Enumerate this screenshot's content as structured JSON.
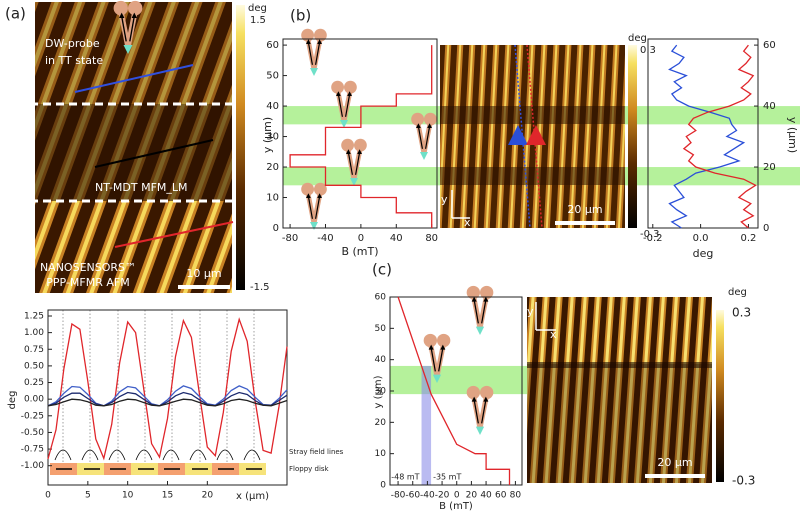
{
  "figure": {
    "panel_labels": [
      "(a)",
      "(b)",
      "(c)"
    ],
    "image_a": {
      "label_top": "DW-probe",
      "label_top2": "in TT state",
      "label_mid": "NT-MDT MFM_LM",
      "label_bottom": "NANOSENSORS™",
      "label_bottom2": "PPP-MFMR AFM",
      "scale_bar": "10 μm",
      "colorbar": {
        "label": "deg",
        "max": 1.5,
        "min": -1.5
      }
    },
    "image_b": {
      "axis_y": "y",
      "axis_x": "x",
      "scale_bar": "20 μm",
      "colorbar": {
        "label": "deg",
        "max": 0.3,
        "min": -0.3
      }
    },
    "image_c": {
      "axis_y": "y",
      "axis_x": "x",
      "scale_bar": "20 μm",
      "colorbar": {
        "label": "deg",
        "max": 0.3,
        "min": -0.3
      }
    }
  },
  "chart_data": [
    {
      "type": "line",
      "xlabel": "x (μm)",
      "ylabel": "deg",
      "x": [
        0,
        1,
        2,
        3,
        4,
        5,
        6,
        7,
        8,
        9,
        10,
        11,
        12,
        13,
        14,
        15,
        16,
        17,
        18,
        19,
        20,
        21,
        22,
        23,
        24,
        25,
        26,
        27,
        28,
        29,
        30
      ],
      "series": [
        {
          "color": "#e0262b",
          "values": [
            -0.9,
            -0.46,
            0.46,
            1.13,
            1.05,
            0.27,
            -0.6,
            -0.89,
            -0.38,
            0.55,
            1.16,
            1.0,
            0.17,
            -0.67,
            -0.87,
            -0.29,
            0.64,
            1.18,
            0.93,
            0.08,
            -0.72,
            -0.85,
            -0.2,
            0.72,
            1.2,
            0.87,
            -0.02,
            -0.77,
            -0.81,
            -0.11,
            0.79
          ]
        },
        {
          "color": "#3f5fc8",
          "values": [
            -0.1,
            -0.04,
            0.09,
            0.19,
            0.18,
            0.07,
            -0.06,
            -0.1,
            -0.03,
            0.11,
            0.19,
            0.17,
            0.05,
            -0.07,
            -0.1,
            -0.01,
            0.12,
            0.2,
            0.16,
            0.04,
            -0.07,
            -0.09,
            0.0,
            0.13,
            0.2,
            0.15,
            0.03,
            -0.08,
            -0.09,
            0.01,
            0.14
          ]
        },
        {
          "color": "#1c2a6e",
          "values": [
            -0.1,
            -0.06,
            0.03,
            0.09,
            0.09,
            0.01,
            -0.07,
            -0.1,
            -0.05,
            0.04,
            0.1,
            0.08,
            0.0,
            -0.08,
            -0.1,
            -0.04,
            0.05,
            0.1,
            0.07,
            -0.01,
            -0.08,
            -0.1,
            -0.03,
            0.05,
            0.1,
            0.07,
            -0.02,
            -0.09,
            -0.09,
            -0.02,
            0.06
          ]
        },
        {
          "color": "#222222",
          "values": [
            -0.1,
            -0.08,
            -0.04,
            0,
            -0.01,
            -0.04,
            -0.09,
            -0.1,
            -0.08,
            -0.03,
            0,
            -0.01,
            -0.05,
            -0.09,
            -0.1,
            -0.07,
            -0.03,
            0,
            -0.01,
            -0.05,
            -0.09,
            -0.1,
            -0.07,
            -0.02,
            0,
            -0.02,
            -0.06,
            -0.09,
            -0.1,
            -0.06,
            -0.02
          ]
        }
      ],
      "xlim": [
        0,
        30
      ],
      "xticks": [
        0,
        5,
        10,
        15,
        20
      ],
      "ylim": [
        -1.29,
        1.34
      ],
      "yticks": [
        1.25,
        {
          "value": 1,
          "label": "1.00"
        },
        0.75,
        {
          "value": 0.5,
          "label": "0.50"
        },
        0.25,
        {
          "value": 0,
          "label": "0.00"
        },
        -0.25,
        {
          "value": -0.5,
          "label": "-0.50"
        },
        -0.75,
        {
          "value": -1,
          "label": "-1.00"
        }
      ],
      "annotations": [
        "Stray field lines",
        "Floppy disk"
      ]
    },
    {
      "type": "line",
      "xlabel": "B (mT)",
      "ylabel": "y (μm)",
      "x": [
        80,
        80,
        40,
        40,
        0,
        0,
        -40,
        -40,
        -80,
        -80,
        -40,
        -40,
        0,
        0,
        40,
        40,
        80,
        80
      ],
      "series": [
        {
          "color": "#e0262b",
          "values": [
            60,
            44,
            44,
            40,
            40,
            33,
            33,
            24,
            24,
            20,
            20,
            14,
            14,
            10,
            10,
            5,
            5,
            0
          ]
        }
      ],
      "xlim": [
        -88,
        86
      ],
      "xticks": [
        -80,
        -40,
        0,
        40,
        80
      ],
      "ylim": [
        0,
        62
      ],
      "yticks": [
        0,
        10,
        20,
        30,
        40,
        50,
        60
      ],
      "bands": [
        [
          34,
          40
        ],
        [
          14,
          20
        ]
      ]
    },
    {
      "type": "line",
      "xlabel": "deg",
      "ylabel": "y (μm)",
      "y": [
        0,
        2,
        4,
        6,
        8,
        10,
        12,
        14,
        16,
        18,
        20,
        22,
        24,
        26,
        28,
        30,
        32,
        34,
        36,
        38,
        40,
        42,
        44,
        46,
        48,
        50,
        52,
        54,
        56,
        58,
        60
      ],
      "series": [
        {
          "color": "#2a4fd8",
          "values": [
            -0.08,
            -0.12,
            -0.06,
            -0.1,
            -0.13,
            -0.07,
            -0.09,
            -0.11,
            -0.06,
            -0.02,
            0.08,
            0.16,
            0.1,
            0.14,
            0.18,
            0.11,
            0.15,
            0.13,
            0.12,
            0.04,
            -0.05,
            -0.1,
            -0.12,
            -0.08,
            -0.11,
            -0.06,
            -0.13,
            -0.09,
            -0.07,
            -0.12,
            -0.1
          ]
        },
        {
          "color": "#e0262b",
          "values": [
            0.2,
            0.17,
            0.22,
            0.18,
            0.21,
            0.16,
            0.19,
            0.23,
            0.18,
            0.06,
            -0.02,
            -0.05,
            -0.03,
            -0.07,
            -0.04,
            -0.06,
            -0.02,
            -0.05,
            -0.03,
            0.03,
            0.12,
            0.18,
            0.21,
            0.17,
            0.2,
            0.22,
            0.16,
            0.19,
            0.21,
            0.18,
            0.2
          ]
        }
      ],
      "xlim": [
        -0.22,
        0.24
      ],
      "xticks": [
        -0.2,
        {
          "value": 0,
          "label": "0.0"
        },
        0.2
      ],
      "ylim": [
        0,
        62
      ],
      "yticks": [
        0,
        20,
        40,
        60
      ]
    },
    {
      "type": "line",
      "xlabel": "B (mT)",
      "ylabel": "y (μm)",
      "x": [
        -80,
        -48,
        -35,
        0,
        25,
        40,
        40,
        72,
        72
      ],
      "series": [
        {
          "color": "#e0262b",
          "values": [
            60,
            38,
            29,
            13,
            10,
            10,
            5,
            5,
            0
          ]
        }
      ],
      "xlim": [
        -91,
        89
      ],
      "xticks": [
        -80,
        -60,
        -40,
        -20,
        0,
        20,
        40,
        60,
        80
      ],
      "ylim": [
        0,
        60
      ],
      "yticks": [
        0,
        10,
        20,
        30,
        40,
        50,
        60
      ],
      "bands": [
        [
          29,
          38
        ]
      ],
      "xband": [
        {
          "value": -48,
          "label": "-48 mT"
        },
        {
          "value": -35,
          "label": "-35 mT"
        }
      ]
    }
  ]
}
